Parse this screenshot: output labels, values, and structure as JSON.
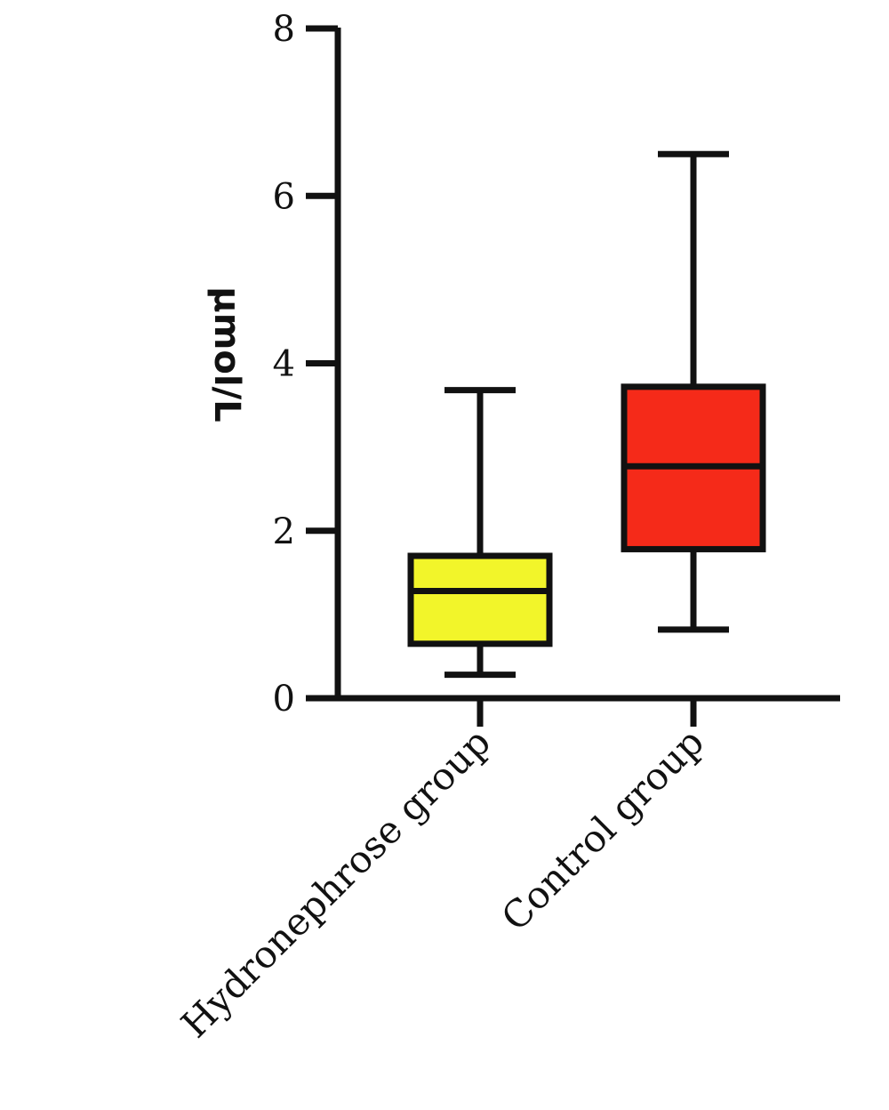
{
  "chart_data": {
    "type": "boxplot",
    "title": "",
    "xlabel": "",
    "ylabel": "µmol/L",
    "ylim": [
      0,
      8
    ],
    "yticks": [
      "0",
      "2",
      "4",
      "6",
      "8"
    ],
    "grid": false,
    "legend": "none",
    "categories": [
      "Hydronephrose group",
      "Control group"
    ],
    "boxes": [
      {
        "category": "Hydronephrose group",
        "min": 0.28,
        "q1": 0.65,
        "median": 1.28,
        "q3": 1.7,
        "max": 3.68,
        "color": "#f2f52a"
      },
      {
        "category": "Control group",
        "min": 0.82,
        "q1": 1.78,
        "median": 2.77,
        "q3": 3.72,
        "max": 6.5,
        "color": "#f52a19"
      }
    ]
  }
}
